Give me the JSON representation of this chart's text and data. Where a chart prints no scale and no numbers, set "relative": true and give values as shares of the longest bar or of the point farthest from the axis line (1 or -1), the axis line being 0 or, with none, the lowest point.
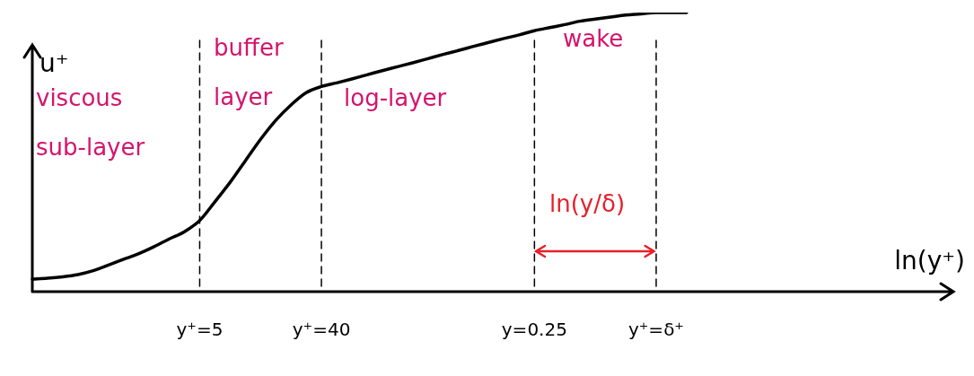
{
  "chart_data": {
    "type": "line",
    "relative": true,
    "xlabel": "ln(y⁺)",
    "ylabel": "u⁺",
    "categories": [
      null,
      null,
      null,
      null,
      null,
      null,
      null,
      null,
      null,
      null,
      null,
      "y⁺=5",
      null,
      null,
      null,
      null,
      null,
      null,
      null,
      "y⁺=40",
      null,
      null,
      null,
      null,
      null,
      null,
      null,
      null,
      null,
      null,
      null,
      null,
      null,
      "y=0.25",
      null,
      null,
      null,
      null,
      null,
      null,
      null,
      "y⁺=δ⁺",
      null,
      null,
      null,
      null,
      null,
      null,
      null,
      null,
      null,
      null,
      null,
      null,
      null,
      null,
      null,
      null,
      null,
      null,
      null
    ],
    "series": [
      {
        "color": "#000000",
        "values": [
          0.045,
          0.048,
          0.053,
          0.061,
          0.075,
          0.095,
          0.116,
          0.136,
          0.161,
          0.189,
          0.215,
          0.255,
          0.322,
          0.392,
          0.469,
          0.546,
          0.614,
          0.669,
          0.713,
          0.735,
          0.748,
          0.762,
          0.777,
          0.792,
          0.806,
          0.82,
          0.835,
          0.85,
          0.864,
          0.879,
          0.893,
          0.907,
          0.92,
          0.935,
          0.946,
          0.957,
          0.969,
          0.977,
          0.984,
          0.991,
          0.995,
          1,
          1,
          1,
          null,
          null,
          null,
          null,
          null,
          null,
          null,
          null,
          null,
          null,
          null,
          null,
          null,
          null,
          null,
          null,
          null
        ]
      }
    ],
    "ref_lines": [
      {
        "axis": "x",
        "value": "y⁺=5",
        "line_style": "dashed"
      },
      {
        "axis": "x",
        "value": "y⁺=40",
        "line_style": "dashed"
      },
      {
        "axis": "x",
        "value": "y=0.25",
        "line_style": "dashed"
      },
      {
        "axis": "x",
        "value": "y⁺=δ⁺",
        "line_style": "dashed"
      }
    ],
    "annotations": [
      "viscous sub-layer",
      "buffer layer",
      "log-layer",
      "wake",
      "ln(y/δ)"
    ],
    "grid": false,
    "legend": false,
    "marker": "none",
    "line_style": "solid"
  }
}
